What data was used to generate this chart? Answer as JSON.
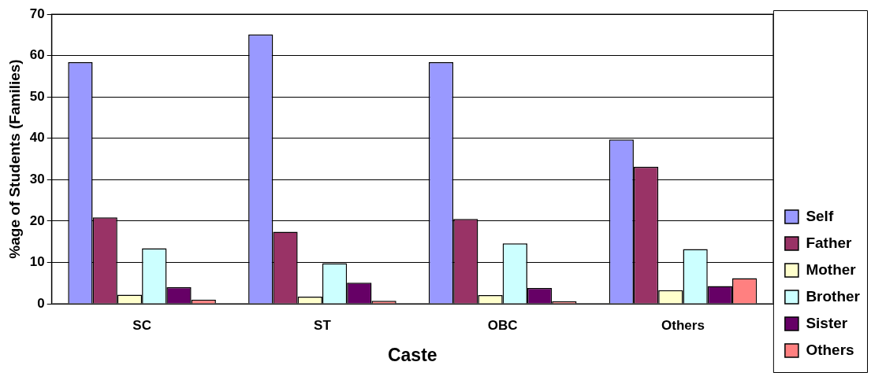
{
  "chart_data": {
    "type": "bar",
    "xlabel": "Caste",
    "ylabel": "%age of Students (Families)",
    "categories": [
      "SC",
      "ST",
      "OBC",
      "Others"
    ],
    "series": [
      {
        "name": "Self",
        "color": "#9999ff",
        "values": [
          58.4,
          65.1,
          58.4,
          39.7
        ]
      },
      {
        "name": "Father",
        "color": "#993366",
        "values": [
          20.9,
          17.4,
          20.5,
          33.1
        ]
      },
      {
        "name": "Mother",
        "color": "#ffffcc",
        "values": [
          2.2,
          1.7,
          2.1,
          3.3
        ]
      },
      {
        "name": "Brother",
        "color": "#ccffff",
        "values": [
          13.4,
          9.8,
          14.6,
          13.2
        ]
      },
      {
        "name": "Sister",
        "color": "#660066",
        "values": [
          4.0,
          5.1,
          3.8,
          4.3
        ]
      },
      {
        "name": "Others",
        "color": "#ff8080",
        "values": [
          1.0,
          0.7,
          0.6,
          6.2
        ]
      }
    ],
    "ylim": [
      0,
      70
    ],
    "yticks": [
      0,
      10,
      20,
      30,
      40,
      50,
      60,
      70
    ],
    "grid": "y",
    "legend": "bottom right"
  }
}
